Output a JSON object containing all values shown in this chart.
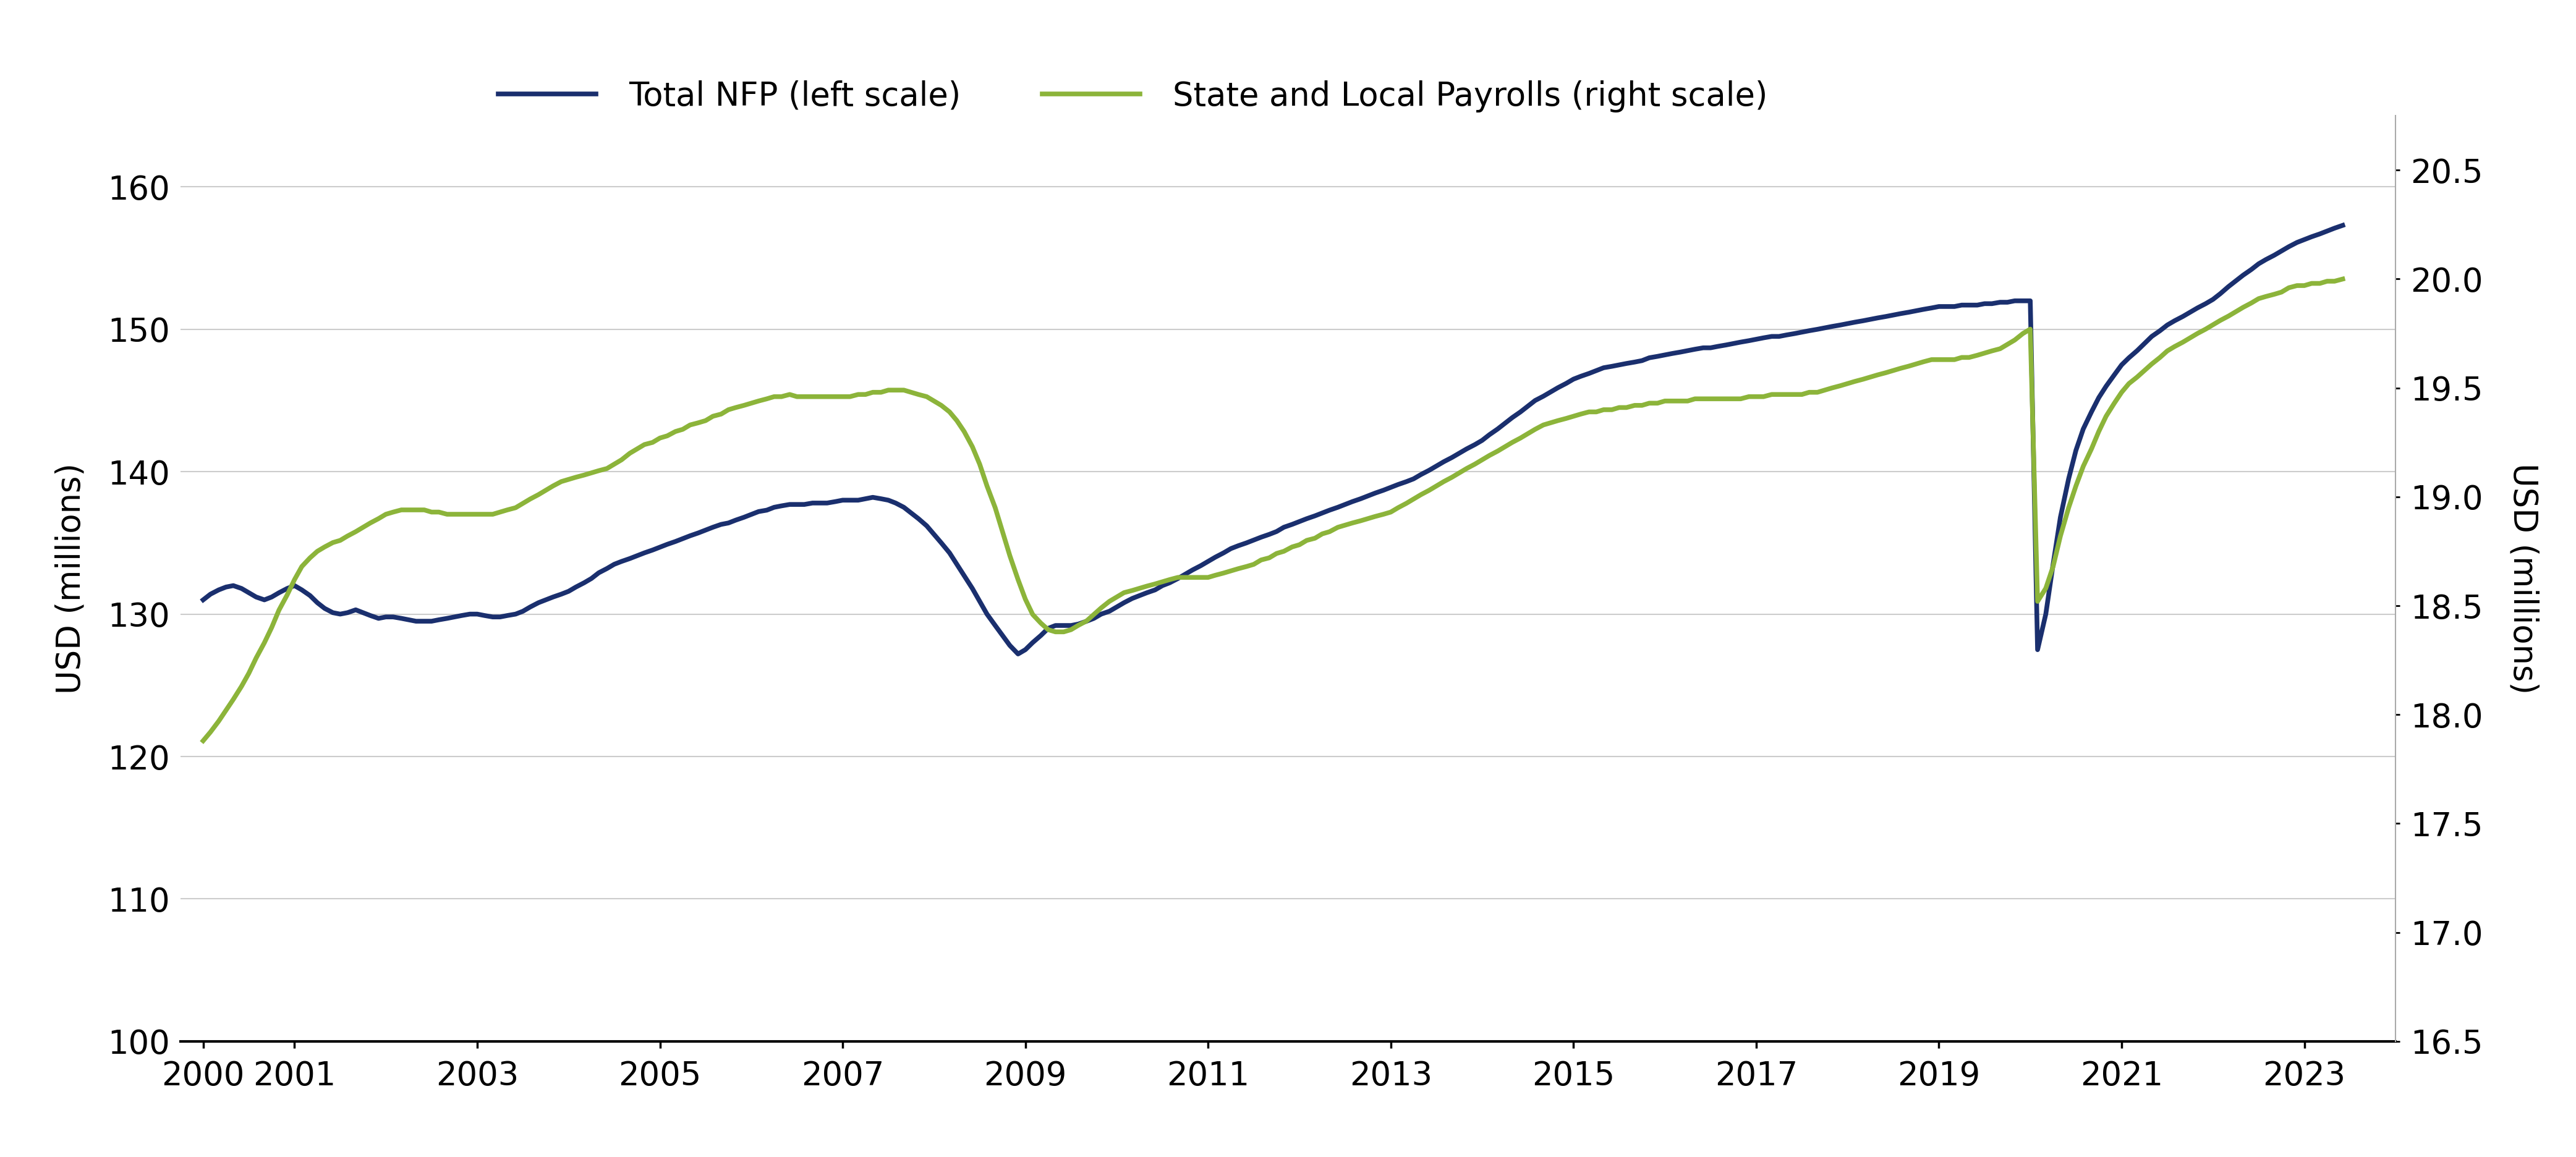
{
  "nfp_color": "#1a2f6e",
  "sl_color": "#8cb43a",
  "background_color": "#ffffff",
  "left_ylabel": "USD (millions)",
  "right_ylabel": "USD (millions)",
  "legend_nfp": "Total NFP (left scale)",
  "legend_sl": "State and Local Payrolls (right scale)",
  "left_ylim": [
    100,
    165
  ],
  "right_ylim": [
    16.5,
    20.75
  ],
  "left_yticks": [
    100,
    110,
    120,
    130,
    140,
    150,
    160
  ],
  "right_yticks": [
    16.5,
    17.0,
    17.5,
    18.0,
    18.5,
    19.0,
    19.5,
    20.0,
    20.5
  ],
  "xticks": [
    2000,
    2001,
    2003,
    2005,
    2007,
    2009,
    2011,
    2013,
    2015,
    2017,
    2019,
    2021,
    2023
  ],
  "nfp_x": [
    2000.0,
    2000.08,
    2000.17,
    2000.25,
    2000.33,
    2000.42,
    2000.5,
    2000.58,
    2000.67,
    2000.75,
    2000.83,
    2000.92,
    2001.0,
    2001.08,
    2001.17,
    2001.25,
    2001.33,
    2001.42,
    2001.5,
    2001.58,
    2001.67,
    2001.75,
    2001.83,
    2001.92,
    2002.0,
    2002.08,
    2002.17,
    2002.25,
    2002.33,
    2002.42,
    2002.5,
    2002.58,
    2002.67,
    2002.75,
    2002.83,
    2002.92,
    2003.0,
    2003.08,
    2003.17,
    2003.25,
    2003.33,
    2003.42,
    2003.5,
    2003.58,
    2003.67,
    2003.75,
    2003.83,
    2003.92,
    2004.0,
    2004.08,
    2004.17,
    2004.25,
    2004.33,
    2004.42,
    2004.5,
    2004.58,
    2004.67,
    2004.75,
    2004.83,
    2004.92,
    2005.0,
    2005.08,
    2005.17,
    2005.25,
    2005.33,
    2005.42,
    2005.5,
    2005.58,
    2005.67,
    2005.75,
    2005.83,
    2005.92,
    2006.0,
    2006.08,
    2006.17,
    2006.25,
    2006.33,
    2006.42,
    2006.5,
    2006.58,
    2006.67,
    2006.75,
    2006.83,
    2006.92,
    2007.0,
    2007.08,
    2007.17,
    2007.25,
    2007.33,
    2007.42,
    2007.5,
    2007.58,
    2007.67,
    2007.75,
    2007.83,
    2007.92,
    2008.0,
    2008.08,
    2008.17,
    2008.25,
    2008.33,
    2008.42,
    2008.5,
    2008.58,
    2008.67,
    2008.75,
    2008.83,
    2008.92,
    2009.0,
    2009.08,
    2009.17,
    2009.25,
    2009.33,
    2009.42,
    2009.5,
    2009.58,
    2009.67,
    2009.75,
    2009.83,
    2009.92,
    2010.0,
    2010.08,
    2010.17,
    2010.25,
    2010.33,
    2010.42,
    2010.5,
    2010.58,
    2010.67,
    2010.75,
    2010.83,
    2010.92,
    2011.0,
    2011.08,
    2011.17,
    2011.25,
    2011.33,
    2011.42,
    2011.5,
    2011.58,
    2011.67,
    2011.75,
    2011.83,
    2011.92,
    2012.0,
    2012.08,
    2012.17,
    2012.25,
    2012.33,
    2012.42,
    2012.5,
    2012.58,
    2012.67,
    2012.75,
    2012.83,
    2012.92,
    2013.0,
    2013.08,
    2013.17,
    2013.25,
    2013.33,
    2013.42,
    2013.5,
    2013.58,
    2013.67,
    2013.75,
    2013.83,
    2013.92,
    2014.0,
    2014.08,
    2014.17,
    2014.25,
    2014.33,
    2014.42,
    2014.5,
    2014.58,
    2014.67,
    2014.75,
    2014.83,
    2014.92,
    2015.0,
    2015.08,
    2015.17,
    2015.25,
    2015.33,
    2015.42,
    2015.5,
    2015.58,
    2015.67,
    2015.75,
    2015.83,
    2015.92,
    2016.0,
    2016.08,
    2016.17,
    2016.25,
    2016.33,
    2016.42,
    2016.5,
    2016.58,
    2016.67,
    2016.75,
    2016.83,
    2016.92,
    2017.0,
    2017.08,
    2017.17,
    2017.25,
    2017.33,
    2017.42,
    2017.5,
    2017.58,
    2017.67,
    2017.75,
    2017.83,
    2017.92,
    2018.0,
    2018.08,
    2018.17,
    2018.25,
    2018.33,
    2018.42,
    2018.5,
    2018.58,
    2018.67,
    2018.75,
    2018.83,
    2018.92,
    2019.0,
    2019.08,
    2019.17,
    2019.25,
    2019.33,
    2019.42,
    2019.5,
    2019.58,
    2019.67,
    2019.75,
    2019.83,
    2019.92,
    2020.0,
    2020.08,
    2020.17,
    2020.25,
    2020.33,
    2020.42,
    2020.5,
    2020.58,
    2020.67,
    2020.75,
    2020.83,
    2020.92,
    2021.0,
    2021.08,
    2021.17,
    2021.25,
    2021.33,
    2021.42,
    2021.5,
    2021.58,
    2021.67,
    2021.75,
    2021.83,
    2021.92,
    2022.0,
    2022.08,
    2022.17,
    2022.25,
    2022.33,
    2022.42,
    2022.5,
    2022.58,
    2022.67,
    2022.75,
    2022.83,
    2022.92,
    2023.0,
    2023.08,
    2023.17,
    2023.25,
    2023.33,
    2023.42
  ],
  "nfp_y": [
    131.0,
    131.4,
    131.7,
    131.9,
    132.0,
    131.8,
    131.5,
    131.2,
    131.0,
    131.2,
    131.5,
    131.8,
    132.0,
    131.7,
    131.3,
    130.8,
    130.4,
    130.1,
    130.0,
    130.1,
    130.3,
    130.1,
    129.9,
    129.7,
    129.8,
    129.8,
    129.7,
    129.6,
    129.5,
    129.5,
    129.5,
    129.6,
    129.7,
    129.8,
    129.9,
    130.0,
    130.0,
    129.9,
    129.8,
    129.8,
    129.9,
    130.0,
    130.2,
    130.5,
    130.8,
    131.0,
    131.2,
    131.4,
    131.6,
    131.9,
    132.2,
    132.5,
    132.9,
    133.2,
    133.5,
    133.7,
    133.9,
    134.1,
    134.3,
    134.5,
    134.7,
    134.9,
    135.1,
    135.3,
    135.5,
    135.7,
    135.9,
    136.1,
    136.3,
    136.4,
    136.6,
    136.8,
    137.0,
    137.2,
    137.3,
    137.5,
    137.6,
    137.7,
    137.7,
    137.7,
    137.8,
    137.8,
    137.8,
    137.9,
    138.0,
    138.0,
    138.0,
    138.1,
    138.2,
    138.1,
    138.0,
    137.8,
    137.5,
    137.1,
    136.7,
    136.2,
    135.6,
    135.0,
    134.3,
    133.5,
    132.7,
    131.8,
    130.9,
    130.0,
    129.2,
    128.5,
    127.8,
    127.2,
    127.5,
    128.0,
    128.5,
    129.0,
    129.2,
    129.2,
    129.2,
    129.3,
    129.5,
    129.7,
    130.0,
    130.2,
    130.5,
    130.8,
    131.1,
    131.3,
    131.5,
    131.7,
    132.0,
    132.2,
    132.5,
    132.8,
    133.1,
    133.4,
    133.7,
    134.0,
    134.3,
    134.6,
    134.8,
    135.0,
    135.2,
    135.4,
    135.6,
    135.8,
    136.1,
    136.3,
    136.5,
    136.7,
    136.9,
    137.1,
    137.3,
    137.5,
    137.7,
    137.9,
    138.1,
    138.3,
    138.5,
    138.7,
    138.9,
    139.1,
    139.3,
    139.5,
    139.8,
    140.1,
    140.4,
    140.7,
    141.0,
    141.3,
    141.6,
    141.9,
    142.2,
    142.6,
    143.0,
    143.4,
    143.8,
    144.2,
    144.6,
    145.0,
    145.3,
    145.6,
    145.9,
    146.2,
    146.5,
    146.7,
    146.9,
    147.1,
    147.3,
    147.4,
    147.5,
    147.6,
    147.7,
    147.8,
    148.0,
    148.1,
    148.2,
    148.3,
    148.4,
    148.5,
    148.6,
    148.7,
    148.7,
    148.8,
    148.9,
    149.0,
    149.1,
    149.2,
    149.3,
    149.4,
    149.5,
    149.5,
    149.6,
    149.7,
    149.8,
    149.9,
    150.0,
    150.1,
    150.2,
    150.3,
    150.4,
    150.5,
    150.6,
    150.7,
    150.8,
    150.9,
    151.0,
    151.1,
    151.2,
    151.3,
    151.4,
    151.5,
    151.6,
    151.6,
    151.6,
    151.7,
    151.7,
    151.7,
    151.8,
    151.8,
    151.9,
    151.9,
    152.0,
    152.0,
    152.0,
    127.5,
    130.0,
    133.5,
    136.8,
    139.5,
    141.5,
    143.0,
    144.2,
    145.2,
    146.0,
    146.8,
    147.5,
    148.0,
    148.5,
    149.0,
    149.5,
    149.9,
    150.3,
    150.6,
    150.9,
    151.2,
    151.5,
    151.8,
    152.1,
    152.5,
    153.0,
    153.4,
    153.8,
    154.2,
    154.6,
    154.9,
    155.2,
    155.5,
    155.8,
    156.1,
    156.3,
    156.5,
    156.7,
    156.9,
    157.1,
    157.3
  ],
  "sl_y": [
    17.88,
    17.92,
    17.97,
    18.02,
    18.07,
    18.13,
    18.19,
    18.26,
    18.33,
    18.4,
    18.48,
    18.55,
    18.62,
    18.68,
    18.72,
    18.75,
    18.77,
    18.79,
    18.8,
    18.82,
    18.84,
    18.86,
    18.88,
    18.9,
    18.92,
    18.93,
    18.94,
    18.94,
    18.94,
    18.94,
    18.93,
    18.93,
    18.92,
    18.92,
    18.92,
    18.92,
    18.92,
    18.92,
    18.92,
    18.93,
    18.94,
    18.95,
    18.97,
    18.99,
    19.01,
    19.03,
    19.05,
    19.07,
    19.08,
    19.09,
    19.1,
    19.11,
    19.12,
    19.13,
    19.15,
    19.17,
    19.2,
    19.22,
    19.24,
    19.25,
    19.27,
    19.28,
    19.3,
    19.31,
    19.33,
    19.34,
    19.35,
    19.37,
    19.38,
    19.4,
    19.41,
    19.42,
    19.43,
    19.44,
    19.45,
    19.46,
    19.46,
    19.47,
    19.46,
    19.46,
    19.46,
    19.46,
    19.46,
    19.46,
    19.46,
    19.46,
    19.47,
    19.47,
    19.48,
    19.48,
    19.49,
    19.49,
    19.49,
    19.48,
    19.47,
    19.46,
    19.44,
    19.42,
    19.39,
    19.35,
    19.3,
    19.23,
    19.15,
    19.05,
    18.95,
    18.84,
    18.73,
    18.62,
    18.53,
    18.46,
    18.42,
    18.39,
    18.38,
    18.38,
    18.39,
    18.41,
    18.43,
    18.46,
    18.49,
    18.52,
    18.54,
    18.56,
    18.57,
    18.58,
    18.59,
    18.6,
    18.61,
    18.62,
    18.63,
    18.63,
    18.63,
    18.63,
    18.63,
    18.64,
    18.65,
    18.66,
    18.67,
    18.68,
    18.69,
    18.71,
    18.72,
    18.74,
    18.75,
    18.77,
    18.78,
    18.8,
    18.81,
    18.83,
    18.84,
    18.86,
    18.87,
    18.88,
    18.89,
    18.9,
    18.91,
    18.92,
    18.93,
    18.95,
    18.97,
    18.99,
    19.01,
    19.03,
    19.05,
    19.07,
    19.09,
    19.11,
    19.13,
    19.15,
    19.17,
    19.19,
    19.21,
    19.23,
    19.25,
    19.27,
    19.29,
    19.31,
    19.33,
    19.34,
    19.35,
    19.36,
    19.37,
    19.38,
    19.39,
    19.39,
    19.4,
    19.4,
    19.41,
    19.41,
    19.42,
    19.42,
    19.43,
    19.43,
    19.44,
    19.44,
    19.44,
    19.44,
    19.45,
    19.45,
    19.45,
    19.45,
    19.45,
    19.45,
    19.45,
    19.46,
    19.46,
    19.46,
    19.47,
    19.47,
    19.47,
    19.47,
    19.47,
    19.48,
    19.48,
    19.49,
    19.5,
    19.51,
    19.52,
    19.53,
    19.54,
    19.55,
    19.56,
    19.57,
    19.58,
    19.59,
    19.6,
    19.61,
    19.62,
    19.63,
    19.63,
    19.63,
    19.63,
    19.64,
    19.64,
    19.65,
    19.66,
    19.67,
    19.68,
    19.7,
    19.72,
    19.75,
    19.77,
    18.52,
    18.58,
    18.68,
    18.82,
    18.95,
    19.05,
    19.14,
    19.22,
    19.3,
    19.37,
    19.43,
    19.48,
    19.52,
    19.55,
    19.58,
    19.61,
    19.64,
    19.67,
    19.69,
    19.71,
    19.73,
    19.75,
    19.77,
    19.79,
    19.81,
    19.83,
    19.85,
    19.87,
    19.89,
    19.91,
    19.92,
    19.93,
    19.94,
    19.96,
    19.97,
    19.97,
    19.98,
    19.98,
    19.99,
    19.99,
    20.0
  ]
}
